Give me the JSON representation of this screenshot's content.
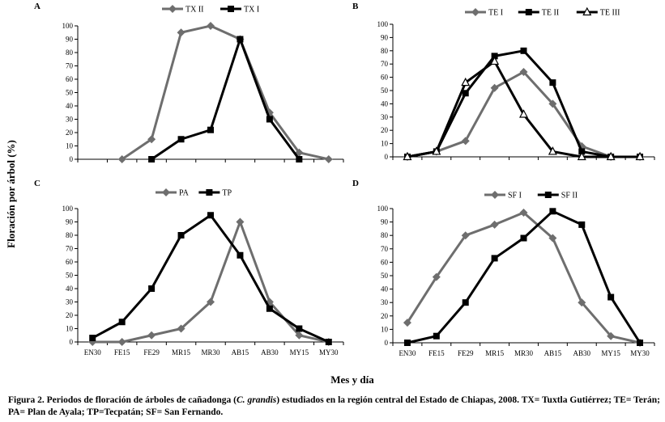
{
  "xlabel": "Mes y día",
  "ylabel": "Floración por árbol (%)",
  "caption": {
    "part1": "Figura 2. Periodos de floración de árboles de cañadonga (",
    "species": "C. grandis",
    "part2": ") estudiados en la región central del Estado de Chiapas, 2008. TX= Tuxtla Gutiérrez; TE= Terán; PA= Plan de Ayala; TP=Tecpatán; SF= San Fernando."
  },
  "colors": {
    "gray": "#6e6e6e",
    "black": "#000000"
  },
  "chart_data": [
    {
      "panel": "A",
      "type": "line",
      "categories": [
        "EN30",
        "FE15",
        "FE29",
        "MR15",
        "MR30",
        "AB15",
        "AB30",
        "MY15",
        "MY30"
      ],
      "show_categories": false,
      "ylim": [
        0,
        100
      ],
      "yticks": [
        0,
        10,
        20,
        30,
        40,
        50,
        60,
        70,
        80,
        90,
        100
      ],
      "series": [
        {
          "name": "TX II",
          "color": "#6e6e6e",
          "marker": "diamond",
          "values": [
            null,
            0,
            15,
            95,
            100,
            90,
            35,
            5,
            0
          ]
        },
        {
          "name": "TX I",
          "color": "#000000",
          "marker": "square",
          "values": [
            null,
            null,
            0,
            15,
            22,
            90,
            30,
            0,
            null
          ]
        }
      ]
    },
    {
      "panel": "B",
      "type": "line",
      "categories": [
        "EN30",
        "FE15",
        "FE29",
        "MR15",
        "MR30",
        "AB15",
        "AB30",
        "MY15",
        "MY30"
      ],
      "show_categories": false,
      "ylim": [
        0,
        100
      ],
      "yticks": [
        0,
        10,
        20,
        30,
        40,
        50,
        60,
        70,
        80,
        90,
        100
      ],
      "series": [
        {
          "name": "TE I",
          "color": "#6e6e6e",
          "marker": "diamond",
          "values": [
            0,
            4,
            12,
            52,
            64,
            40,
            8,
            0,
            0
          ]
        },
        {
          "name": "TE II",
          "color": "#000000",
          "marker": "square",
          "values": [
            0,
            4,
            48,
            76,
            80,
            56,
            4,
            0,
            0
          ]
        },
        {
          "name": "TE III",
          "color": "#000000",
          "marker": "triangle",
          "values": [
            0,
            4,
            56,
            72,
            32,
            4,
            0,
            0,
            0
          ]
        }
      ]
    },
    {
      "panel": "C",
      "type": "line",
      "categories": [
        "EN30",
        "FE15",
        "FE29",
        "MR15",
        "MR30",
        "AB15",
        "AB30",
        "MY15",
        "MY30"
      ],
      "show_categories": true,
      "ylim": [
        0,
        100
      ],
      "yticks": [
        0,
        10,
        20,
        30,
        40,
        50,
        60,
        70,
        80,
        90,
        100
      ],
      "series": [
        {
          "name": "PA",
          "color": "#6e6e6e",
          "marker": "diamond",
          "values": [
            0,
            0,
            5,
            10,
            30,
            90,
            30,
            5,
            0
          ]
        },
        {
          "name": "TP",
          "color": "#000000",
          "marker": "square",
          "values": [
            3,
            15,
            40,
            80,
            95,
            65,
            25,
            10,
            0
          ]
        }
      ]
    },
    {
      "panel": "D",
      "type": "line",
      "categories": [
        "EN30",
        "FE15",
        "FE29",
        "MR15",
        "MR30",
        "AB15",
        "AB30",
        "MY15",
        "MY30"
      ],
      "show_categories": true,
      "ylim": [
        0,
        100
      ],
      "yticks": [
        0,
        10,
        20,
        30,
        40,
        50,
        60,
        70,
        80,
        90,
        100
      ],
      "series": [
        {
          "name": "SF I",
          "color": "#6e6e6e",
          "marker": "diamond",
          "values": [
            15,
            49,
            80,
            88,
            97,
            78,
            30,
            5,
            0
          ]
        },
        {
          "name": "SF II",
          "color": "#000000",
          "marker": "square",
          "values": [
            0,
            5,
            30,
            63,
            78,
            98,
            88,
            34,
            0
          ]
        }
      ]
    }
  ]
}
